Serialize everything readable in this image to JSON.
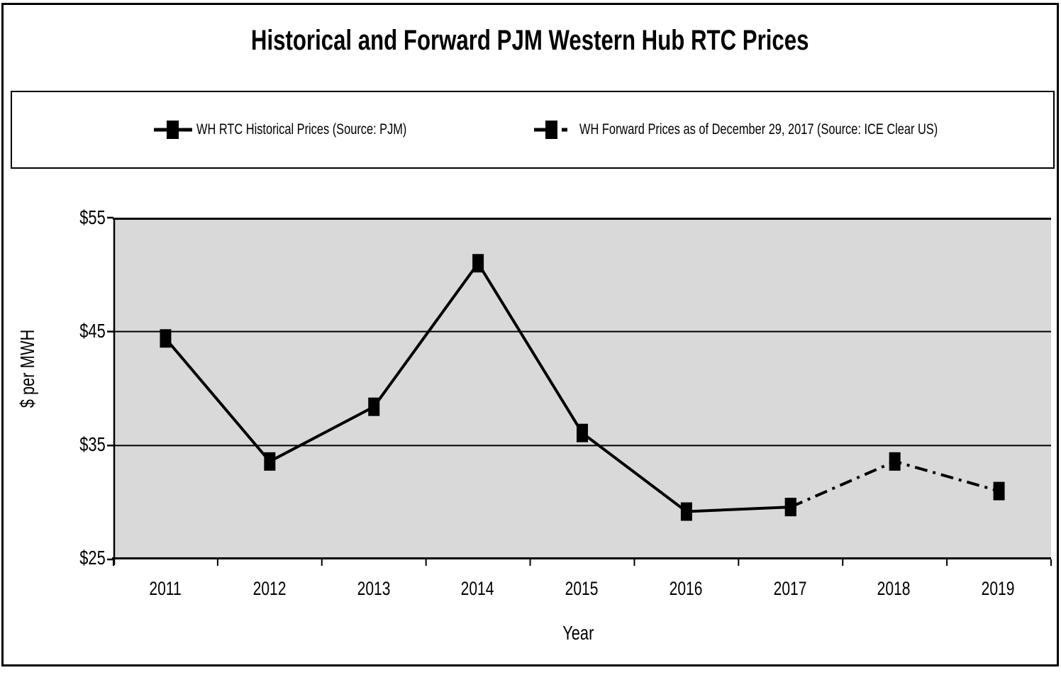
{
  "chart_data": {
    "type": "line",
    "title": "Historical and Forward PJM Western Hub RTC Prices",
    "xlabel": "Year",
    "ylabel": "$ per MWH",
    "categories": [
      "2011",
      "2012",
      "2013",
      "2014",
      "2015",
      "2016",
      "2017",
      "2018",
      "2019"
    ],
    "ylim": [
      25,
      55
    ],
    "ytick_values": [
      55,
      45,
      35,
      25
    ],
    "ytick_labels": [
      "$55",
      "$45",
      "$35",
      "$25"
    ],
    "grid": "horizontal gridlines at every $10 from $25 to $55",
    "legend_position": "top, boxed, single row",
    "plot_bg_color": "#D9D9D9",
    "line_color": "#000000",
    "marker_shape": "filled-square",
    "series": [
      {
        "id": "historical",
        "name": "WH RTC Historical Prices (Source: PJM)",
        "line_style": "solid",
        "values": [
          44.4,
          33.6,
          38.4,
          51.0,
          36.1,
          29.2,
          29.6,
          null,
          null
        ]
      },
      {
        "id": "forward",
        "name": "WH Forward Prices as of December 29, 2017 (Source: ICE Clear US)",
        "line_style": "dash-dot",
        "values": [
          null,
          null,
          null,
          null,
          null,
          null,
          29.6,
          33.6,
          31.0
        ]
      }
    ]
  }
}
